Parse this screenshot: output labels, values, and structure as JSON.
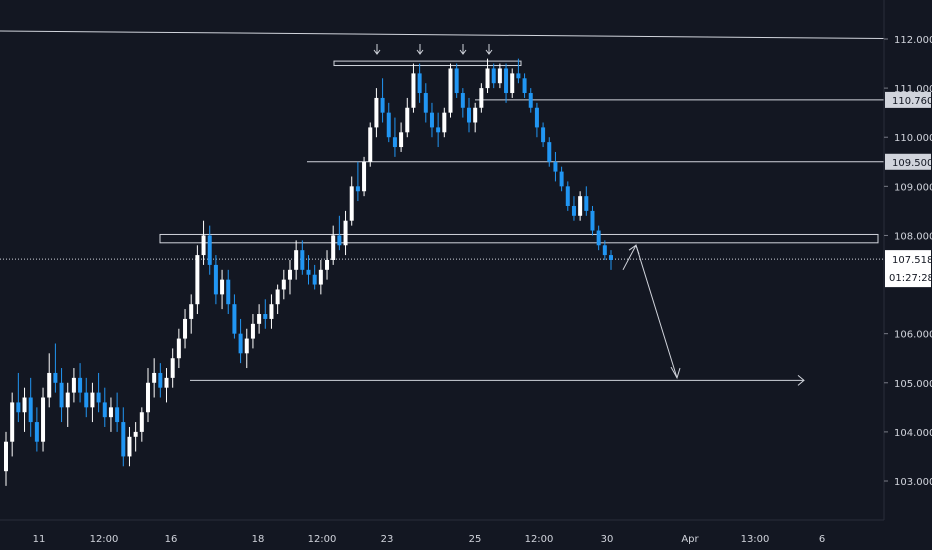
{
  "colors": {
    "background": "#131722",
    "axis_text": "#d1d4dc",
    "candle_up": "#ffffff",
    "candle_down": "#2196f3",
    "drawing": "#d1d4dc",
    "price_tag_bg": "#ffffff",
    "price_tag_text": "#131722",
    "level_tag_bg": "#d1d4dc"
  },
  "chart_data": {
    "type": "candlestick",
    "title": "",
    "xlabel": "",
    "ylabel": "",
    "x_ticks": [
      "11",
      "12:00",
      "16",
      "18",
      "12:00",
      "23",
      "25",
      "12:00",
      "30",
      "Apr",
      "13:00",
      "6"
    ],
    "y_ticks": [
      "112.000",
      "111.000",
      "110.000",
      "109.000",
      "108.000",
      "106.000",
      "105.000",
      "104.000",
      "103.000"
    ],
    "ylim": [
      102.4,
      112.65
    ],
    "grid": false,
    "current_price": "107.518",
    "countdown": "01:27:28",
    "level_labels": [
      "110.760",
      "109.500"
    ],
    "annotation_arrows": 4,
    "series": [
      {
        "candles": [
          {
            "o": 103.2,
            "h": 104.0,
            "l": 102.9,
            "c": 103.8
          },
          {
            "o": 103.8,
            "h": 104.8,
            "l": 103.5,
            "c": 104.6
          },
          {
            "o": 104.6,
            "h": 105.2,
            "l": 104.2,
            "c": 104.4
          },
          {
            "o": 104.4,
            "h": 104.9,
            "l": 104.0,
            "c": 104.7
          },
          {
            "o": 104.7,
            "h": 105.1,
            "l": 103.9,
            "c": 104.2
          },
          {
            "o": 104.2,
            "h": 104.5,
            "l": 103.6,
            "c": 103.8
          },
          {
            "o": 103.8,
            "h": 104.9,
            "l": 103.6,
            "c": 104.7
          },
          {
            "o": 104.7,
            "h": 105.6,
            "l": 104.5,
            "c": 105.2
          },
          {
            "o": 105.2,
            "h": 105.8,
            "l": 104.8,
            "c": 105.0
          },
          {
            "o": 105.0,
            "h": 105.3,
            "l": 104.2,
            "c": 104.5
          },
          {
            "o": 104.5,
            "h": 105.0,
            "l": 104.1,
            "c": 104.8
          },
          {
            "o": 104.8,
            "h": 105.3,
            "l": 104.6,
            "c": 105.1
          },
          {
            "o": 105.1,
            "h": 105.4,
            "l": 104.6,
            "c": 104.8
          },
          {
            "o": 104.8,
            "h": 105.1,
            "l": 104.3,
            "c": 104.5
          },
          {
            "o": 104.5,
            "h": 105.0,
            "l": 104.2,
            "c": 104.8
          },
          {
            "o": 104.8,
            "h": 105.2,
            "l": 104.4,
            "c": 104.6
          },
          {
            "o": 104.6,
            "h": 104.9,
            "l": 104.1,
            "c": 104.3
          },
          {
            "o": 104.3,
            "h": 104.7,
            "l": 104.0,
            "c": 104.5
          },
          {
            "o": 104.5,
            "h": 104.8,
            "l": 104.0,
            "c": 104.2
          },
          {
            "o": 104.2,
            "h": 104.5,
            "l": 103.3,
            "c": 103.5
          },
          {
            "o": 103.5,
            "h": 104.1,
            "l": 103.3,
            "c": 103.9
          },
          {
            "o": 103.9,
            "h": 104.2,
            "l": 103.6,
            "c": 104.0
          },
          {
            "o": 104.0,
            "h": 104.5,
            "l": 103.8,
            "c": 104.4
          },
          {
            "o": 104.4,
            "h": 105.3,
            "l": 104.2,
            "c": 105.0
          },
          {
            "o": 105.0,
            "h": 105.5,
            "l": 104.7,
            "c": 105.2
          },
          {
            "o": 105.2,
            "h": 105.4,
            "l": 104.7,
            "c": 104.9
          },
          {
            "o": 104.9,
            "h": 105.3,
            "l": 104.6,
            "c": 105.1
          },
          {
            "o": 105.1,
            "h": 105.7,
            "l": 104.9,
            "c": 105.5
          },
          {
            "o": 105.5,
            "h": 106.1,
            "l": 105.3,
            "c": 105.9
          },
          {
            "o": 105.9,
            "h": 106.5,
            "l": 105.7,
            "c": 106.3
          },
          {
            "o": 106.3,
            "h": 106.8,
            "l": 106.0,
            "c": 106.6
          },
          {
            "o": 106.6,
            "h": 107.8,
            "l": 106.4,
            "c": 107.6
          },
          {
            "o": 107.6,
            "h": 108.3,
            "l": 107.4,
            "c": 108.0
          },
          {
            "o": 108.0,
            "h": 108.2,
            "l": 107.2,
            "c": 107.4
          },
          {
            "o": 107.4,
            "h": 107.6,
            "l": 106.6,
            "c": 106.8
          },
          {
            "o": 106.8,
            "h": 107.3,
            "l": 106.5,
            "c": 107.1
          },
          {
            "o": 107.1,
            "h": 107.3,
            "l": 106.4,
            "c": 106.6
          },
          {
            "o": 106.6,
            "h": 106.8,
            "l": 105.9,
            "c": 106.0
          },
          {
            "o": 106.0,
            "h": 106.3,
            "l": 105.4,
            "c": 105.6
          },
          {
            "o": 105.6,
            "h": 106.1,
            "l": 105.3,
            "c": 105.9
          },
          {
            "o": 105.9,
            "h": 106.4,
            "l": 105.7,
            "c": 106.2
          },
          {
            "o": 106.2,
            "h": 106.6,
            "l": 106.0,
            "c": 106.4
          },
          {
            "o": 106.4,
            "h": 106.7,
            "l": 106.1,
            "c": 106.3
          },
          {
            "o": 106.3,
            "h": 106.8,
            "l": 106.1,
            "c": 106.6
          },
          {
            "o": 106.6,
            "h": 107.0,
            "l": 106.4,
            "c": 106.9
          },
          {
            "o": 106.9,
            "h": 107.3,
            "l": 106.7,
            "c": 107.1
          },
          {
            "o": 107.1,
            "h": 107.5,
            "l": 106.8,
            "c": 107.3
          },
          {
            "o": 107.3,
            "h": 107.9,
            "l": 107.1,
            "c": 107.7
          },
          {
            "o": 107.7,
            "h": 107.9,
            "l": 107.2,
            "c": 107.3
          },
          {
            "o": 107.3,
            "h": 107.6,
            "l": 107.0,
            "c": 107.2
          },
          {
            "o": 107.2,
            "h": 107.4,
            "l": 106.9,
            "c": 107.0
          },
          {
            "o": 107.0,
            "h": 107.5,
            "l": 106.8,
            "c": 107.3
          },
          {
            "o": 107.3,
            "h": 107.7,
            "l": 107.1,
            "c": 107.5
          },
          {
            "o": 107.5,
            "h": 108.2,
            "l": 107.4,
            "c": 108.0
          },
          {
            "o": 108.0,
            "h": 108.4,
            "l": 107.7,
            "c": 107.8
          },
          {
            "o": 107.8,
            "h": 108.5,
            "l": 107.6,
            "c": 108.3
          },
          {
            "o": 108.3,
            "h": 109.2,
            "l": 108.2,
            "c": 109.0
          },
          {
            "o": 109.0,
            "h": 109.5,
            "l": 108.7,
            "c": 108.9
          },
          {
            "o": 108.9,
            "h": 109.6,
            "l": 108.8,
            "c": 109.5
          },
          {
            "o": 109.5,
            "h": 110.3,
            "l": 109.4,
            "c": 110.2
          },
          {
            "o": 110.2,
            "h": 111.0,
            "l": 110.0,
            "c": 110.8
          },
          {
            "o": 110.8,
            "h": 111.2,
            "l": 110.3,
            "c": 110.5
          },
          {
            "o": 110.5,
            "h": 110.7,
            "l": 109.9,
            "c": 110.0
          },
          {
            "o": 110.0,
            "h": 110.4,
            "l": 109.6,
            "c": 109.8
          },
          {
            "o": 109.8,
            "h": 110.3,
            "l": 109.7,
            "c": 110.1
          },
          {
            "o": 110.1,
            "h": 110.8,
            "l": 110.0,
            "c": 110.6
          },
          {
            "o": 110.6,
            "h": 111.5,
            "l": 110.5,
            "c": 111.3
          },
          {
            "o": 111.3,
            "h": 111.5,
            "l": 110.7,
            "c": 110.9
          },
          {
            "o": 110.9,
            "h": 111.1,
            "l": 110.3,
            "c": 110.5
          },
          {
            "o": 110.5,
            "h": 110.7,
            "l": 110.0,
            "c": 110.2
          },
          {
            "o": 110.2,
            "h": 110.5,
            "l": 109.8,
            "c": 110.1
          },
          {
            "o": 110.1,
            "h": 110.6,
            "l": 110.0,
            "c": 110.5
          },
          {
            "o": 110.5,
            "h": 111.5,
            "l": 110.4,
            "c": 111.4
          },
          {
            "o": 111.4,
            "h": 111.5,
            "l": 110.8,
            "c": 110.9
          },
          {
            "o": 110.9,
            "h": 111.0,
            "l": 110.4,
            "c": 110.6
          },
          {
            "o": 110.6,
            "h": 110.8,
            "l": 110.1,
            "c": 110.3
          },
          {
            "o": 110.3,
            "h": 110.7,
            "l": 110.1,
            "c": 110.6
          },
          {
            "o": 110.6,
            "h": 111.1,
            "l": 110.5,
            "c": 111.0
          },
          {
            "o": 111.0,
            "h": 111.6,
            "l": 110.9,
            "c": 111.4
          },
          {
            "o": 111.4,
            "h": 111.5,
            "l": 111.0,
            "c": 111.1
          },
          {
            "o": 111.1,
            "h": 111.5,
            "l": 111.0,
            "c": 111.4
          },
          {
            "o": 111.4,
            "h": 111.5,
            "l": 110.7,
            "c": 110.9
          },
          {
            "o": 110.9,
            "h": 111.4,
            "l": 110.8,
            "c": 111.3
          },
          {
            "o": 111.3,
            "h": 111.6,
            "l": 111.1,
            "c": 111.2
          },
          {
            "o": 111.2,
            "h": 111.3,
            "l": 110.8,
            "c": 110.9
          },
          {
            "o": 110.9,
            "h": 111.0,
            "l": 110.5,
            "c": 110.6
          },
          {
            "o": 110.6,
            "h": 110.7,
            "l": 110.0,
            "c": 110.2
          },
          {
            "o": 110.2,
            "h": 110.3,
            "l": 109.8,
            "c": 109.9
          },
          {
            "o": 109.9,
            "h": 110.0,
            "l": 109.4,
            "c": 109.5
          },
          {
            "o": 109.5,
            "h": 109.7,
            "l": 109.1,
            "c": 109.3
          },
          {
            "o": 109.3,
            "h": 109.4,
            "l": 108.9,
            "c": 109.0
          },
          {
            "o": 109.0,
            "h": 109.1,
            "l": 108.5,
            "c": 108.6
          },
          {
            "o": 108.6,
            "h": 108.8,
            "l": 108.3,
            "c": 108.4
          },
          {
            "o": 108.4,
            "h": 108.9,
            "l": 108.3,
            "c": 108.8
          },
          {
            "o": 108.8,
            "h": 109.0,
            "l": 108.4,
            "c": 108.5
          },
          {
            "o": 108.5,
            "h": 108.6,
            "l": 108.0,
            "c": 108.1
          },
          {
            "o": 108.1,
            "h": 108.2,
            "l": 107.7,
            "c": 107.8
          },
          {
            "o": 107.8,
            "h": 107.9,
            "l": 107.5,
            "c": 107.6
          },
          {
            "o": 107.6,
            "h": 107.7,
            "l": 107.3,
            "c": 107.5
          }
        ]
      }
    ]
  }
}
